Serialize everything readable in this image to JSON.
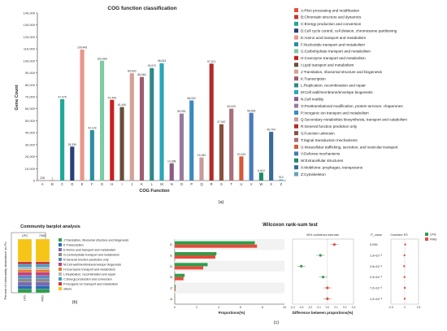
{
  "chart_data": [
    {
      "type": "bar",
      "panel_label": "(a)",
      "title": "COG function classification",
      "xlabel": "COG Function",
      "ylabel": "Gene Count",
      "ylim": [
        0,
        140000
      ],
      "yticks": [
        "0",
        "10,000",
        "20,000",
        "30,000",
        "40,000",
        "50,000",
        "60,000",
        "70,000",
        "80,000",
        "90,000",
        "100,000",
        "110,000",
        "120,000",
        "130,000",
        "140,000"
      ],
      "categories": [
        "A",
        "B",
        "C",
        "D",
        "E",
        "F",
        "G",
        "H",
        "I",
        "J",
        "K",
        "L",
        "M",
        "N",
        "O",
        "P",
        "Q",
        "R",
        "S",
        "T",
        "U",
        "V",
        "W",
        "X",
        "Z"
      ],
      "values": [
        228,
        1,
        67975,
        28339,
        109445,
        42129,
        100069,
        67443,
        61440,
        89630,
        86560,
        93970,
        98053,
        14398,
        55951,
        66932,
        19284,
        97671,
        47067,
        60029,
        20163,
        56565,
        6610,
        40704,
        913
      ],
      "labels": [
        "228",
        "1",
        "67,975",
        "28,339",
        "109,445",
        "42,129",
        "100,069",
        "67,443",
        "61,440",
        "89,630",
        "86,560",
        "93,970",
        "98,053",
        "14,398",
        "55,951",
        "66,932",
        "19,284",
        "97,671",
        "47,067",
        "60,029",
        "20,163",
        "56,565",
        "6,610",
        "40,704",
        "913"
      ],
      "colors": [
        "#e74c3c",
        "#c0392b",
        "#1fa99a",
        "#2c3e78",
        "#e8968a",
        "#2a8fa0",
        "#7ccba2",
        "#c82020",
        "#6a4e3a",
        "#d4a097",
        "#a05c6e",
        "#2e8a86",
        "#2aa6b8",
        "#8a5c86",
        "#9a7a9e",
        "#3a8abf",
        "#c89a9a",
        "#b22a2a",
        "#8a5040",
        "#a87078",
        "#d45a3a",
        "#4a7ab8",
        "#228a66",
        "#3a6a9a",
        "#6aa0c0"
      ],
      "legend": [
        "A:RNA processing and modification",
        "B:Chromatin structure and dynamics",
        "C:Energy production and conversion",
        "D:Cell cycle control, cell division, chromosome partitioning",
        "E:Amino acid transport and metabolism",
        "F:Nucleotide transport and metabolism",
        "G:Carbohydrate transport and metabolism",
        "H:Coenzyme transport and metabolism",
        "I:Lipid transport and metabolism",
        "J:Translation, ribosomal structure and biogenesis",
        "K:Transcription",
        "L:Replication, recombination and repair",
        "M:Cell wall/membrane/envelope biogenesis",
        "N:Cell motility",
        "O:Posttranslational modification, protein turnover, chaperones",
        "P:Inorganic ion transport and metabolism",
        "Q:Secondary metabolites biosynthesis, transport and catabolism",
        "R:General function prediction only",
        "S:Function unknown",
        "T:Signal transduction mechanisms",
        "U:Intracellular trafficking, secretion, and vesicular transport",
        "V:Defense mechanisms",
        "W:Extracellular structures",
        "X:Mobilome: prophages, transposons",
        "Z:Cytoskeleton"
      ],
      "legend_placement": "right"
    },
    {
      "type": "bar",
      "stacked": true,
      "panel_label": "(b)",
      "title": "Community barplot analysis",
      "ylabel": "Percent of community abundance on Fu",
      "categories": [
        "LPG",
        "FMG"
      ],
      "series": [
        {
          "name": "J:Translation, ribosomal structure and biogenesis",
          "color": "#2e9e4a",
          "values": [
            7,
            7
          ]
        },
        {
          "name": "K:Transcription",
          "color": "#2a6ab8",
          "values": [
            6,
            6
          ]
        },
        {
          "name": "E:Amino acid transport and metabolism",
          "color": "#7a6ab0",
          "values": [
            7,
            7
          ]
        },
        {
          "name": "G:Carbohydrate transport and metabolism",
          "color": "#8a8a8a",
          "values": [
            6,
            6
          ]
        },
        {
          "name": "R:General function prediction only",
          "color": "#5a8ac8",
          "values": [
            6,
            6
          ]
        },
        {
          "name": "M:Cell wall/membrane/envelope biogenesis",
          "color": "#c04080",
          "values": [
            6,
            6
          ]
        },
        {
          "name": "H:Coenzyme transport and metabolism",
          "color": "#e87a30",
          "values": [
            5,
            5
          ]
        },
        {
          "name": "L:Replication, recombination and repair",
          "color": "#b8b8b8",
          "values": [
            5,
            5
          ]
        },
        {
          "name": "C:Energy production and conversion",
          "color": "#3a9ec8",
          "values": [
            5,
            5
          ]
        },
        {
          "name": "P:Inorganic ion transport and metabolism",
          "color": "#c83a3a",
          "values": [
            5,
            5
          ]
        },
        {
          "name": "others",
          "color": "#f5c518",
          "values": [
            42,
            42
          ]
        }
      ]
    },
    {
      "type": "bar",
      "orientation": "horizontal",
      "panel_label": "(c)",
      "title": "Wilcoxon rank-sum test",
      "xlabel": "Proportions(%)",
      "xlim": [
        0,
        10
      ],
      "xticks": [
        "0",
        "2",
        "4",
        "6",
        "8",
        "10"
      ],
      "categories": [
        "G",
        "E",
        "D",
        "N",
        "Z",
        "A"
      ],
      "series": [
        {
          "name": "LPG",
          "color": "#2e9e4a",
          "values": [
            7.3,
            3.8,
            3.0,
            0.9,
            0.08,
            0.02
          ]
        },
        {
          "name": "FMG",
          "color": "#e84a3a",
          "values": [
            7.5,
            3.7,
            2.6,
            0.8,
            0.07,
            0.02
          ]
        }
      ],
      "ci_title": "95% confidence intervals",
      "ci_xlabel": "Difference between proportions(%)",
      "ci_xlim": [
        -0.4,
        0.3
      ],
      "ci_xticks": [
        "-0.4",
        "-0.3",
        "-0.2",
        "-0.1",
        "0.0",
        "0.1",
        "0.2",
        "0.3"
      ],
      "ci_points": [
        {
          "category": "G",
          "value": 0.08,
          "color": "#e84a3a"
        },
        {
          "category": "E",
          "value": -0.08,
          "color": "#2e9e4a"
        },
        {
          "category": "D",
          "value": -0.3,
          "color": "#2e9e4a"
        },
        {
          "category": "N",
          "value": -0.05,
          "color": "#2e9e4a"
        },
        {
          "category": "Z",
          "value": 0.0,
          "color": "#e84a3a"
        },
        {
          "category": "A",
          "value": 0.0,
          "color": "#e84a3a"
        }
      ],
      "pvalue_title": "P_value",
      "pvalues": [
        "0.039",
        "1.3×10⁻⁵",
        "2.5×10⁻⁶",
        "2.3×10⁻⁵",
        "7.2×10⁻⁵",
        "1.2×10⁻⁵"
      ],
      "es_title": "Combine ES",
      "es_xticks": [
        "-0.5",
        "0",
        "0.5"
      ],
      "es_points": [
        0.02,
        -0.01,
        -0.02,
        -0.01,
        0.0,
        0.0
      ]
    }
  ]
}
